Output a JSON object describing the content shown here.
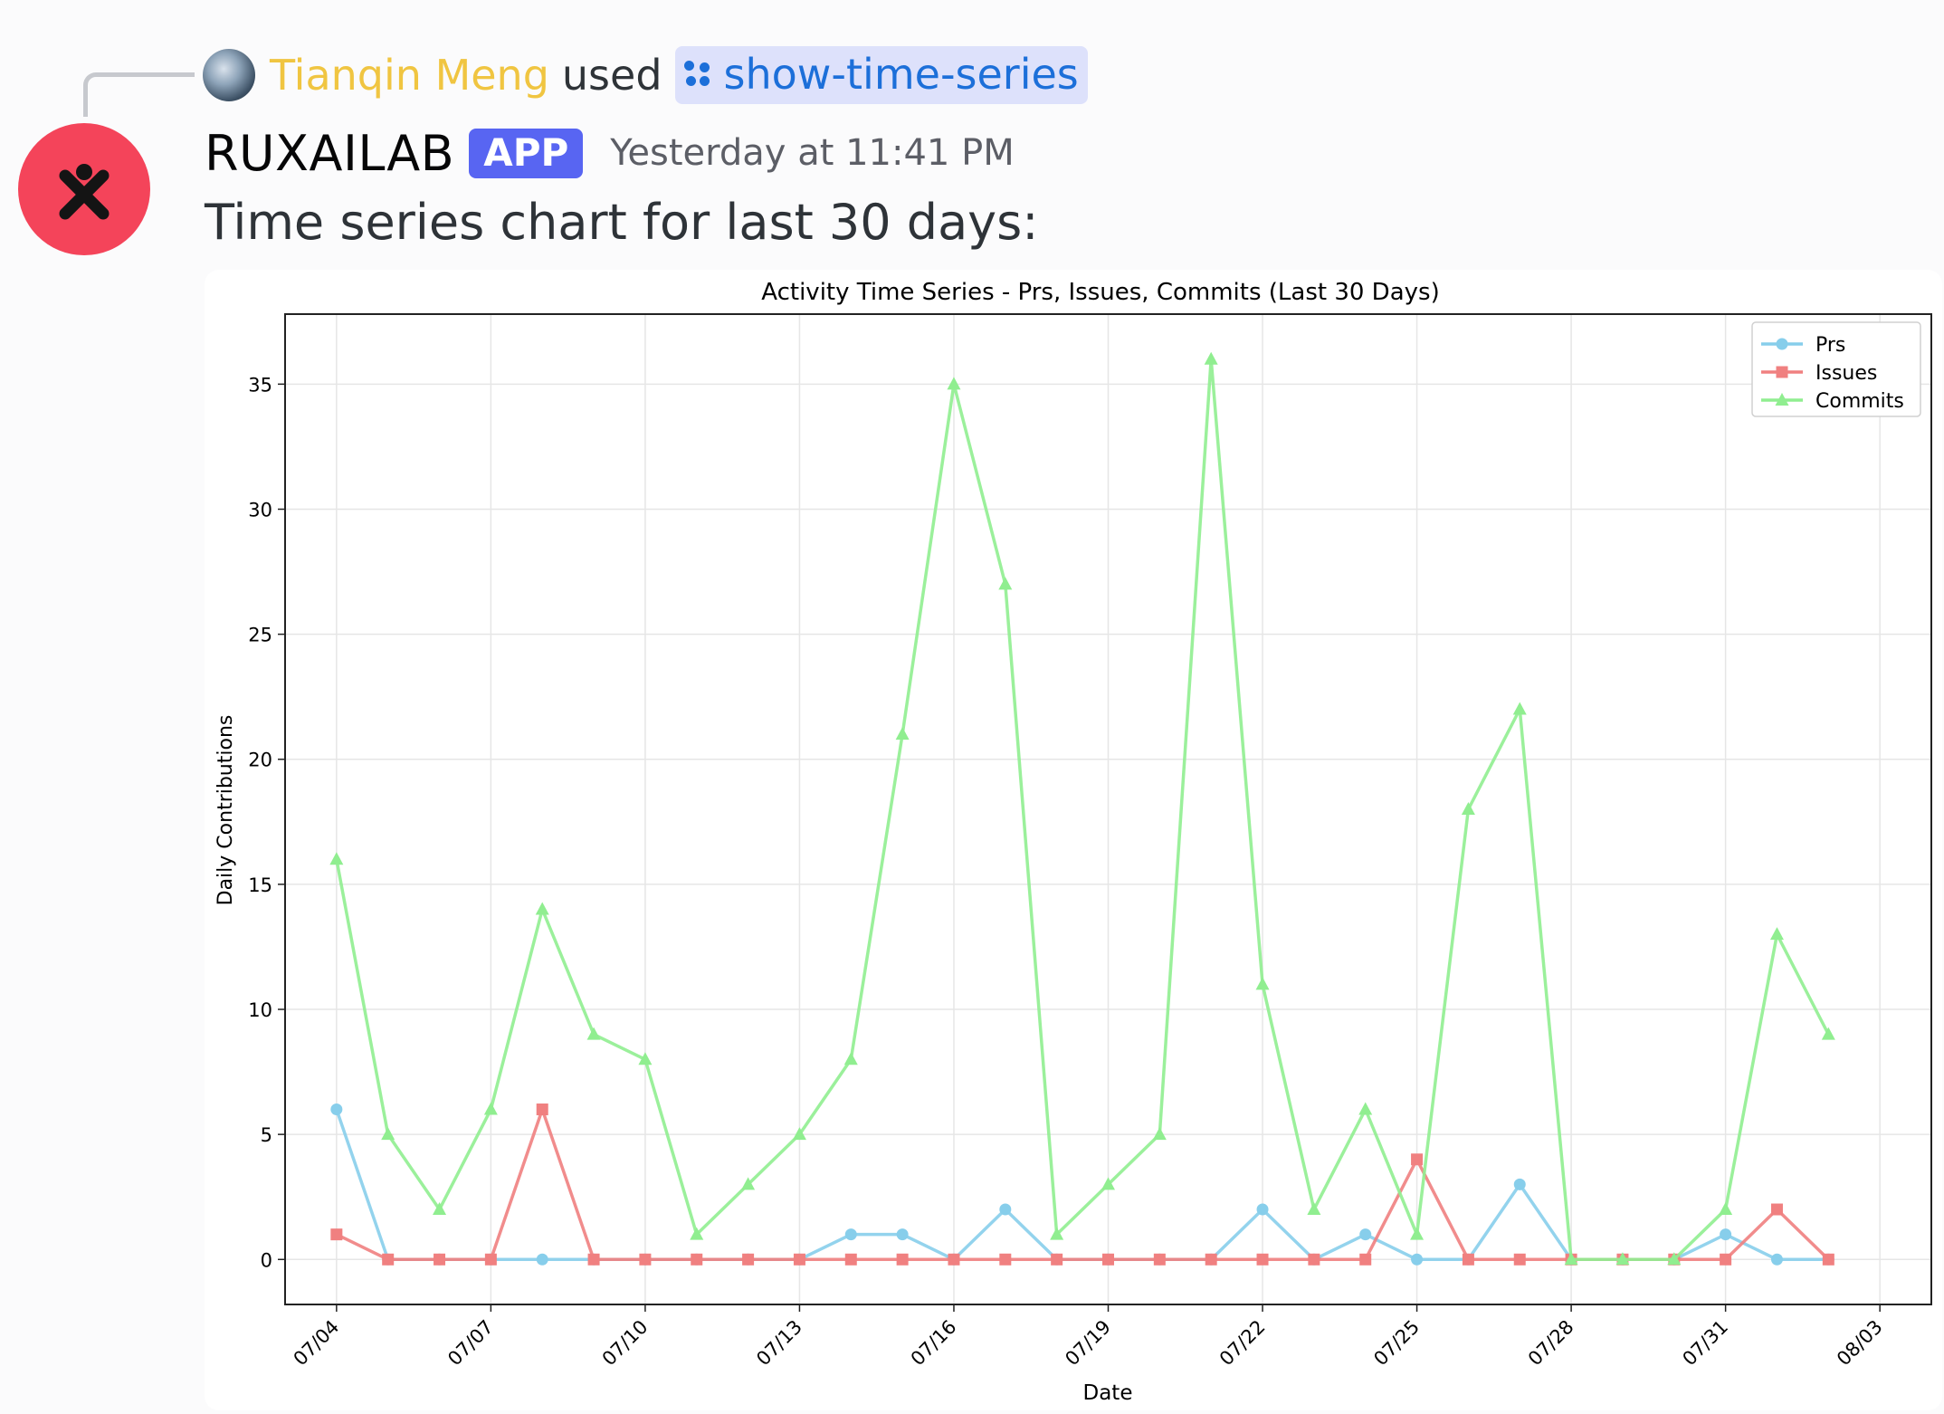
{
  "reply": {
    "user": "Tianqin Meng",
    "used_text": "used",
    "command": "show-time-series"
  },
  "message": {
    "bot_name": "RUXAILAB",
    "badge": "APP",
    "timestamp": "Yesterday at 11:41 PM",
    "text": "Time series chart for last 30 days:"
  },
  "colors": {
    "prs": "#87ceeb",
    "issues": "#f08080",
    "commits": "#90ee90",
    "avatar_bg": "#f4445a",
    "app_badge": "#5865f2",
    "username": "#f0c541",
    "command_link": "#1c6fd9"
  },
  "chart_data": {
    "type": "line",
    "title": "Activity Time Series - Prs, Issues, Commits (Last 30 Days)",
    "xlabel": "Date",
    "ylabel": "Daily Contributions",
    "ylim": [
      -1.8,
      37.8
    ],
    "yticks": [
      0,
      5,
      10,
      15,
      20,
      25,
      30,
      35
    ],
    "xlim": [
      "07/03",
      "08/04"
    ],
    "xticks": [
      "07/04",
      "07/07",
      "07/10",
      "07/13",
      "07/16",
      "07/19",
      "07/22",
      "07/25",
      "07/28",
      "07/31",
      "08/03"
    ],
    "grid": true,
    "legend_position": "top-right",
    "x": [
      "07/04",
      "07/05",
      "07/06",
      "07/07",
      "07/08",
      "07/09",
      "07/10",
      "07/11",
      "07/12",
      "07/13",
      "07/14",
      "07/15",
      "07/16",
      "07/17",
      "07/18",
      "07/19",
      "07/20",
      "07/21",
      "07/22",
      "07/23",
      "07/24",
      "07/25",
      "07/26",
      "07/27",
      "07/28",
      "07/29",
      "07/30",
      "07/31",
      "08/01",
      "08/02"
    ],
    "series": [
      {
        "name": "Prs",
        "marker": "circle",
        "values": [
          6,
          0,
          0,
          0,
          0,
          0,
          0,
          0,
          0,
          0,
          1,
          1,
          0,
          2,
          0,
          0,
          0,
          0,
          2,
          0,
          1,
          0,
          0,
          3,
          0,
          0,
          0,
          1,
          0,
          0
        ]
      },
      {
        "name": "Issues",
        "marker": "square",
        "values": [
          1,
          0,
          0,
          0,
          6,
          0,
          0,
          0,
          0,
          0,
          0,
          0,
          0,
          0,
          0,
          0,
          0,
          0,
          0,
          0,
          0,
          4,
          0,
          0,
          0,
          0,
          0,
          0,
          2,
          0
        ]
      },
      {
        "name": "Commits",
        "marker": "triangle",
        "values": [
          16,
          5,
          2,
          6,
          14,
          9,
          8,
          1,
          3,
          5,
          8,
          21,
          35,
          27,
          1,
          3,
          5,
          36,
          11,
          2,
          6,
          1,
          18,
          22,
          0,
          0,
          0,
          2,
          13,
          9
        ]
      }
    ]
  }
}
